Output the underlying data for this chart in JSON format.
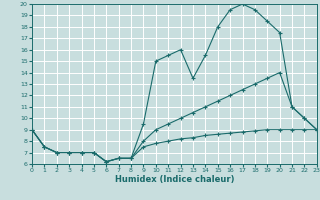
{
  "title": "",
  "xlabel": "Humidex (Indice chaleur)",
  "bg_color": "#c8dede",
  "line_color": "#1a6b6b",
  "grid_color": "#ffffff",
  "xmin": 0,
  "xmax": 23,
  "ymin": 6,
  "ymax": 20,
  "line1_x": [
    0,
    1,
    2,
    3,
    4,
    5,
    6,
    7,
    8,
    9,
    10,
    11,
    12,
    13,
    14,
    15,
    16,
    17,
    18,
    19,
    20,
    21,
    22,
    23
  ],
  "line1_y": [
    9.0,
    7.5,
    7.0,
    7.0,
    7.0,
    7.0,
    6.2,
    6.5,
    6.5,
    9.5,
    15.0,
    15.5,
    16.0,
    13.5,
    15.5,
    18.0,
    19.5,
    20.0,
    19.5,
    18.5,
    17.5,
    11.0,
    10.0,
    9.0
  ],
  "line2_x": [
    0,
    1,
    2,
    3,
    4,
    5,
    6,
    7,
    8,
    9,
    10,
    11,
    12,
    13,
    14,
    15,
    16,
    17,
    18,
    19,
    20,
    21,
    22,
    23
  ],
  "line2_y": [
    9.0,
    7.5,
    7.0,
    7.0,
    7.0,
    7.0,
    6.2,
    6.5,
    6.5,
    8.0,
    9.0,
    9.5,
    10.0,
    10.5,
    11.0,
    11.5,
    12.0,
    12.5,
    13.0,
    13.5,
    14.0,
    11.0,
    10.0,
    9.0
  ],
  "line3_x": [
    0,
    1,
    2,
    3,
    4,
    5,
    6,
    7,
    8,
    9,
    10,
    11,
    12,
    13,
    14,
    15,
    16,
    17,
    18,
    19,
    20,
    21,
    22,
    23
  ],
  "line3_y": [
    9.0,
    7.5,
    7.0,
    7.0,
    7.0,
    7.0,
    6.2,
    6.5,
    6.5,
    7.5,
    7.8,
    8.0,
    8.2,
    8.3,
    8.5,
    8.6,
    8.7,
    8.8,
    8.9,
    9.0,
    9.0,
    9.0,
    9.0,
    9.0
  ],
  "xlabel_fontsize": 6,
  "tick_fontsize": 4.5
}
